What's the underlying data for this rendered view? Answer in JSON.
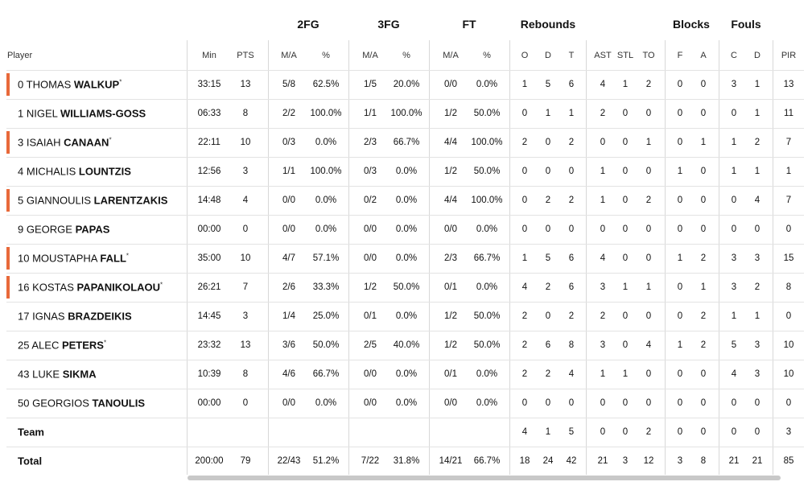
{
  "table": {
    "group_headers": [
      "2FG",
      "3FG",
      "FT",
      "Rebounds",
      "Blocks",
      "Fouls"
    ],
    "columns": [
      "Player",
      "Min",
      "PTS",
      "M/A",
      "%",
      "M/A",
      "%",
      "M/A",
      "%",
      "O",
      "D",
      "T",
      "AST",
      "STL",
      "TO",
      "F",
      "A",
      "C",
      "D",
      "PIR"
    ],
    "rows": [
      {
        "number": "0",
        "first": "THOMAS",
        "last": "WALKUP",
        "mark": "*",
        "starter": true,
        "stats": [
          "33:15",
          "13",
          "5/8",
          "62.5%",
          "1/5",
          "20.0%",
          "0/0",
          "0.0%",
          "1",
          "5",
          "6",
          "4",
          "1",
          "2",
          "0",
          "0",
          "3",
          "1",
          "13"
        ]
      },
      {
        "number": "1",
        "first": "NIGEL",
        "last": "WILLIAMS-GOSS",
        "starter": false,
        "stats": [
          "06:33",
          "8",
          "2/2",
          "100.0%",
          "1/1",
          "100.0%",
          "1/2",
          "50.0%",
          "0",
          "1",
          "1",
          "2",
          "0",
          "0",
          "0",
          "0",
          "0",
          "1",
          "11"
        ]
      },
      {
        "number": "3",
        "first": "ISAIAH",
        "last": "CANAAN",
        "mark": "*",
        "starter": true,
        "stats": [
          "22:11",
          "10",
          "0/3",
          "0.0%",
          "2/3",
          "66.7%",
          "4/4",
          "100.0%",
          "2",
          "0",
          "2",
          "0",
          "0",
          "1",
          "0",
          "1",
          "1",
          "2",
          "7"
        ]
      },
      {
        "number": "4",
        "first": "MICHALIS",
        "last": "LOUNTZIS",
        "starter": false,
        "stats": [
          "12:56",
          "3",
          "1/1",
          "100.0%",
          "0/3",
          "0.0%",
          "1/2",
          "50.0%",
          "0",
          "0",
          "0",
          "1",
          "0",
          "0",
          "1",
          "0",
          "1",
          "1",
          "1"
        ]
      },
      {
        "number": "5",
        "first": "GIANNOULIS",
        "last": "LARENTZAKIS",
        "starter": true,
        "stats": [
          "14:48",
          "4",
          "0/0",
          "0.0%",
          "0/2",
          "0.0%",
          "4/4",
          "100.0%",
          "0",
          "2",
          "2",
          "1",
          "0",
          "2",
          "0",
          "0",
          "0",
          "4",
          "7"
        ]
      },
      {
        "number": "9",
        "first": "GEORGE",
        "last": "PAPAS",
        "starter": false,
        "stats": [
          "00:00",
          "0",
          "0/0",
          "0.0%",
          "0/0",
          "0.0%",
          "0/0",
          "0.0%",
          "0",
          "0",
          "0",
          "0",
          "0",
          "0",
          "0",
          "0",
          "0",
          "0",
          "0"
        ]
      },
      {
        "number": "10",
        "first": "MOUSTAPHA",
        "last": "FALL",
        "mark": "*",
        "starter": true,
        "stats": [
          "35:00",
          "10",
          "4/7",
          "57.1%",
          "0/0",
          "0.0%",
          "2/3",
          "66.7%",
          "1",
          "5",
          "6",
          "4",
          "0",
          "0",
          "1",
          "2",
          "3",
          "3",
          "15"
        ]
      },
      {
        "number": "16",
        "first": "KOSTAS",
        "last": "PAPANIKOLAOU",
        "mark": "*",
        "starter": true,
        "stats": [
          "26:21",
          "7",
          "2/6",
          "33.3%",
          "1/2",
          "50.0%",
          "0/1",
          "0.0%",
          "4",
          "2",
          "6",
          "3",
          "1",
          "1",
          "0",
          "1",
          "3",
          "2",
          "8"
        ]
      },
      {
        "number": "17",
        "first": "IGNAS",
        "last": "BRAZDEIKIS",
        "starter": false,
        "stats": [
          "14:45",
          "3",
          "1/4",
          "25.0%",
          "0/1",
          "0.0%",
          "1/2",
          "50.0%",
          "2",
          "0",
          "2",
          "2",
          "0",
          "0",
          "0",
          "2",
          "1",
          "1",
          "0"
        ]
      },
      {
        "number": "25",
        "first": "ALEC",
        "last": "PETERS",
        "mark": "*",
        "starter": false,
        "stats": [
          "23:32",
          "13",
          "3/6",
          "50.0%",
          "2/5",
          "40.0%",
          "1/2",
          "50.0%",
          "2",
          "6",
          "8",
          "3",
          "0",
          "4",
          "1",
          "2",
          "5",
          "3",
          "10"
        ]
      },
      {
        "number": "43",
        "first": "LUKE",
        "last": "SIKMA",
        "starter": false,
        "stats": [
          "10:39",
          "8",
          "4/6",
          "66.7%",
          "0/0",
          "0.0%",
          "0/1",
          "0.0%",
          "2",
          "2",
          "4",
          "1",
          "1",
          "0",
          "0",
          "0",
          "4",
          "3",
          "10"
        ]
      },
      {
        "number": "50",
        "first": "GEORGIOS",
        "last": "TANOULIS",
        "starter": false,
        "stats": [
          "00:00",
          "0",
          "0/0",
          "0.0%",
          "0/0",
          "0.0%",
          "0/0",
          "0.0%",
          "0",
          "0",
          "0",
          "0",
          "0",
          "0",
          "0",
          "0",
          "0",
          "0",
          "0"
        ]
      }
    ],
    "team": {
      "label": "Team",
      "stats": [
        null,
        null,
        null,
        null,
        null,
        null,
        null,
        null,
        "4",
        "1",
        "5",
        "0",
        "0",
        "2",
        "0",
        "0",
        "0",
        "0",
        "3"
      ]
    },
    "total": {
      "label": "Total",
      "stats": [
        "200:00",
        "79",
        "22/43",
        "51.2%",
        "7/22",
        "31.8%",
        "14/21",
        "66.7%",
        "18",
        "24",
        "42",
        "21",
        "3",
        "12",
        "3",
        "8",
        "21",
        "21",
        "85"
      ]
    }
  }
}
